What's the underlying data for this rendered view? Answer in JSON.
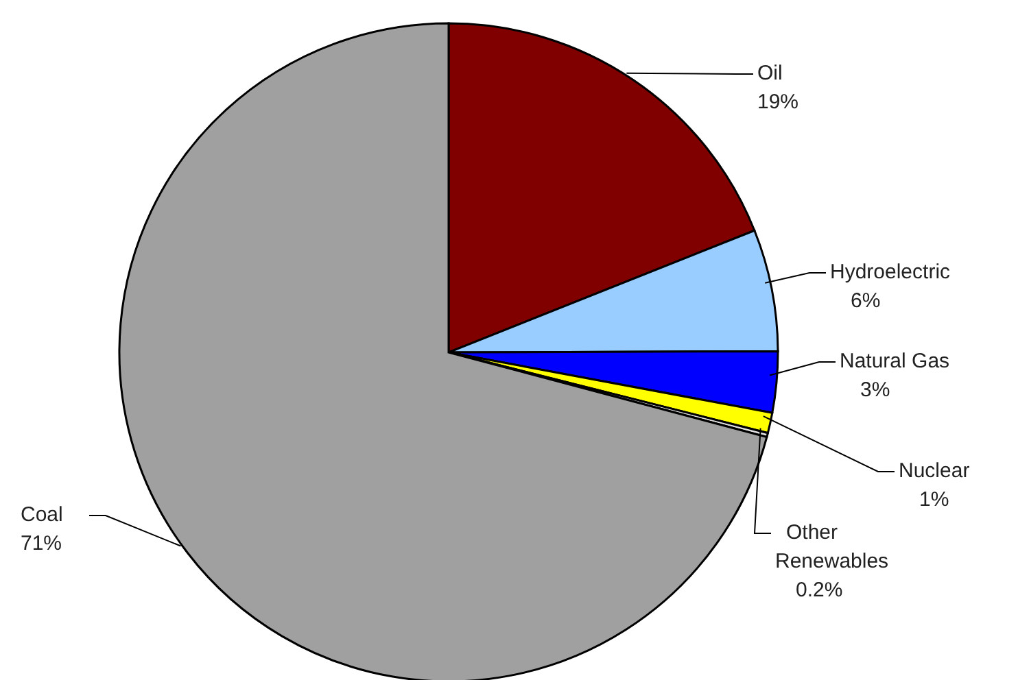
{
  "chart_data": {
    "type": "pie",
    "categories": [
      "Oil",
      "Hydroelectric",
      "Natural Gas",
      "Nuclear",
      "Other Renewables",
      "Coal"
    ],
    "values": [
      19,
      6,
      3,
      1,
      0.2,
      71
    ],
    "value_labels": [
      "19%",
      "6%",
      "3%",
      "1%",
      "0.2%",
      "71%"
    ],
    "colors": [
      "#800000",
      "#99ccff",
      "#0000ff",
      "#ffff00",
      "#e0e0e0",
      "#a0a0a0"
    ]
  }
}
